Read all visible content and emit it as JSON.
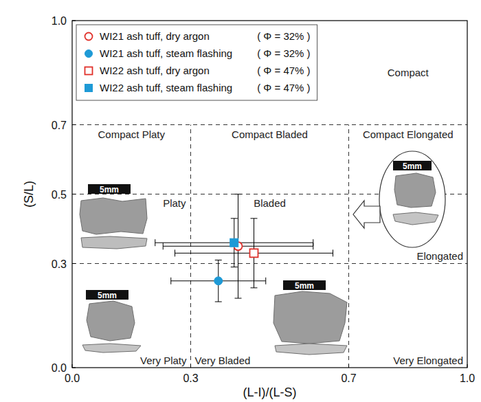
{
  "chart_data": {
    "type": "scatter",
    "xlabel": "(L-I)/(L-S)",
    "ylabel": "(S/L)",
    "xlim": [
      0,
      1
    ],
    "ylim": [
      0,
      1
    ],
    "xticks": [
      {
        "value": 0,
        "label": "0.0"
      },
      0.3,
      0.7,
      {
        "value": 1,
        "label": "1.0"
      }
    ],
    "yticks": [
      {
        "value": 0,
        "label": "0.0"
      },
      0.3,
      0.5,
      0.7,
      {
        "value": 1,
        "label": "1.0"
      }
    ],
    "grid": true,
    "legend": "upper left",
    "regions": [
      "Compact",
      "Compact Platy",
      "Compact Bladed",
      "Compact Elongated",
      "Platy",
      "Bladed",
      "Elongated",
      "Very Platy",
      "Very Bladed",
      "Very Elongated"
    ],
    "scale_bar_labels": [
      "5mm",
      "5mm",
      "5mm",
      "5mm"
    ],
    "series": [
      {
        "name": "WI21 ash tuff, dry argon",
        "porosity_label": "( Φ = 32% )",
        "color": "#e0302a",
        "marker": "open-circle",
        "x": [
          0.42
        ],
        "values": [
          0.35
        ],
        "x_error": [
          0.19
        ],
        "y_error": [
          0.15
        ]
      },
      {
        "name": "WI21 ash tuff, steam flashing",
        "porosity_label": "( Φ = 32% )",
        "color": "#1e9ad6",
        "marker": "circle",
        "x": [
          0.37
        ],
        "values": [
          0.25
        ],
        "x_error": [
          0.12
        ],
        "y_error": [
          0.06
        ]
      },
      {
        "name": "WI22 ash tuff, dry argon",
        "porosity_label": "( Φ = 47% )",
        "color": "#e0302a",
        "marker": "open-square",
        "x": [
          0.46
        ],
        "values": [
          0.33
        ],
        "x_error": [
          0.2
        ],
        "y_error": [
          0.1
        ]
      },
      {
        "name": "WI22 ash tuff, steam flashing",
        "porosity_label": "( Φ = 47% )",
        "color": "#1e9ad6",
        "marker": "square",
        "x": [
          0.41
        ],
        "values": [
          0.36
        ],
        "x_error": [
          0.2
        ],
        "y_error": [
          0.07
        ]
      }
    ]
  }
}
